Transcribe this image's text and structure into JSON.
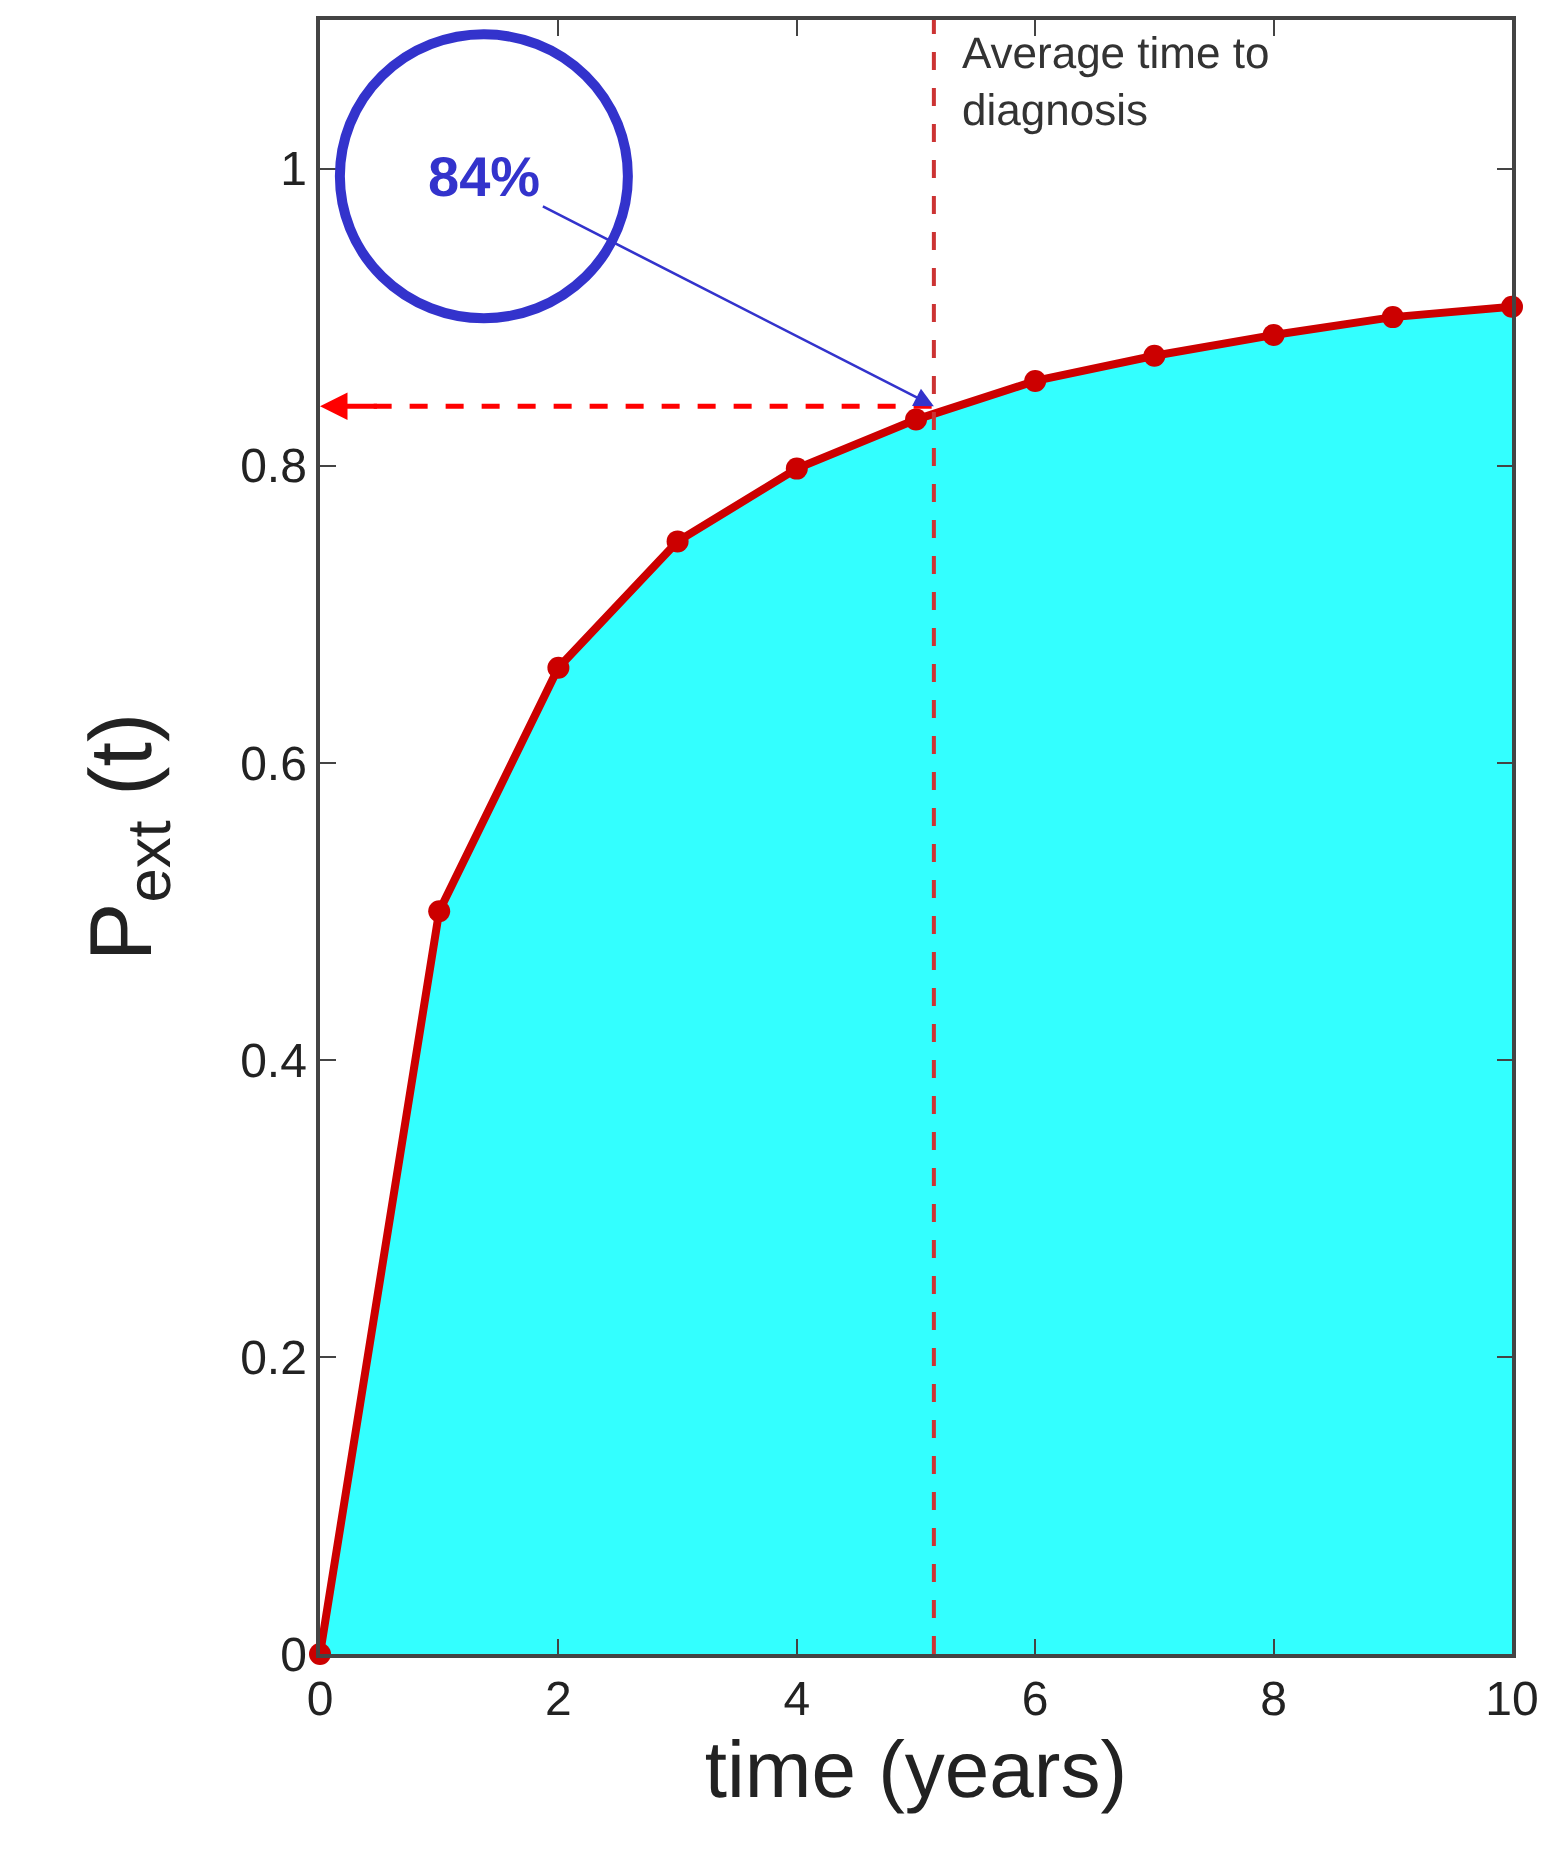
{
  "chart_data": {
    "type": "area",
    "xlabel": "time (years)",
    "ylabel": "P$_{ext}$ (t)",
    "x": [
      0,
      1,
      2,
      3,
      4,
      5,
      6,
      7,
      8,
      9,
      10
    ],
    "series": [
      {
        "color": "#cc0000",
        "values": [
          0,
          0.5,
          0.664,
          0.749,
          0.798,
          0.831,
          0.857,
          0.874,
          0.888,
          0.9,
          0.907
        ]
      }
    ],
    "annotations": [
      {
        "text": "84%",
        "x": 5.15,
        "y": 0.84
      }
    ],
    "xlim": [
      0,
      10
    ],
    "xticks": [
      0,
      2,
      4,
      6,
      8,
      10
    ],
    "ylim": [
      0,
      1.1
    ],
    "yticks": [
      0,
      0.2,
      0.4,
      0.6,
      0.8,
      1
    ],
    "grid": false,
    "marker": "circle",
    "line_style": "solid",
    "ref_lines": [
      {
        "axis": "x",
        "value": 5.15,
        "label": "Average time to diagnosis",
        "color": "#cc3333",
        "line_style": "dashed"
      },
      {
        "axis": "y",
        "value": 0.84,
        "color": "#ff0000",
        "line_style": "dashed"
      }
    ]
  }
}
